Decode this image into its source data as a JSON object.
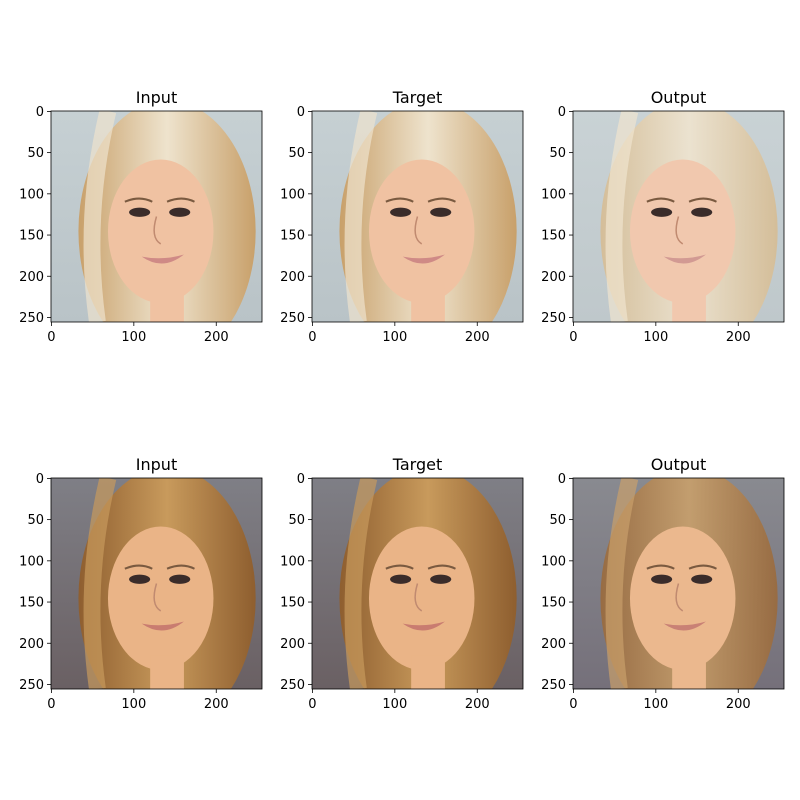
{
  "rows": [
    {
      "panels": [
        {
          "title": "Input",
          "image": {
            "bg_top": "#c6d0d3",
            "bg_bottom": "#b9c3c7",
            "hair": "#c8a06a",
            "hair_light": "#eee3cd",
            "skin": "#f0c2a2",
            "lips": "#cf8a86"
          }
        },
        {
          "title": "Target",
          "image": {
            "bg_top": "#c6d0d3",
            "bg_bottom": "#b9c3c7",
            "hair": "#c8a06a",
            "hair_light": "#eee3cd",
            "skin": "#f0c2a2",
            "lips": "#cf8a86"
          }
        },
        {
          "title": "Output",
          "image": {
            "bg_top": "#c9d2d5",
            "bg_bottom": "#bfc8cb",
            "hair": "#d6bc93",
            "hair_light": "#efe4cf",
            "skin": "#f1c8ae",
            "lips": "#d29a93"
          }
        }
      ]
    },
    {
      "panels": [
        {
          "title": "Input",
          "image": {
            "bg_top": "#7f7f86",
            "bg_bottom": "#6a6063",
            "hair": "#8e5e2f",
            "hair_light": "#c89a5c",
            "skin": "#eab487",
            "lips": "#c97c70"
          }
        },
        {
          "title": "Target",
          "image": {
            "bg_top": "#7f7f86",
            "bg_bottom": "#6a6063",
            "hair": "#8e5e2f",
            "hair_light": "#c89a5c",
            "skin": "#eab487",
            "lips": "#c97c70"
          }
        },
        {
          "title": "Output",
          "image": {
            "bg_top": "#898a90",
            "bg_bottom": "#75707a",
            "hair": "#9a6a3c",
            "hair_light": "#c9a06b",
            "skin": "#ebb88e",
            "lips": "#c98175"
          }
        }
      ]
    }
  ],
  "axes": {
    "x_ticks": [
      "0",
      "100",
      "200"
    ],
    "y_ticks": [
      "0",
      "50",
      "100",
      "150",
      "200",
      "250"
    ]
  }
}
